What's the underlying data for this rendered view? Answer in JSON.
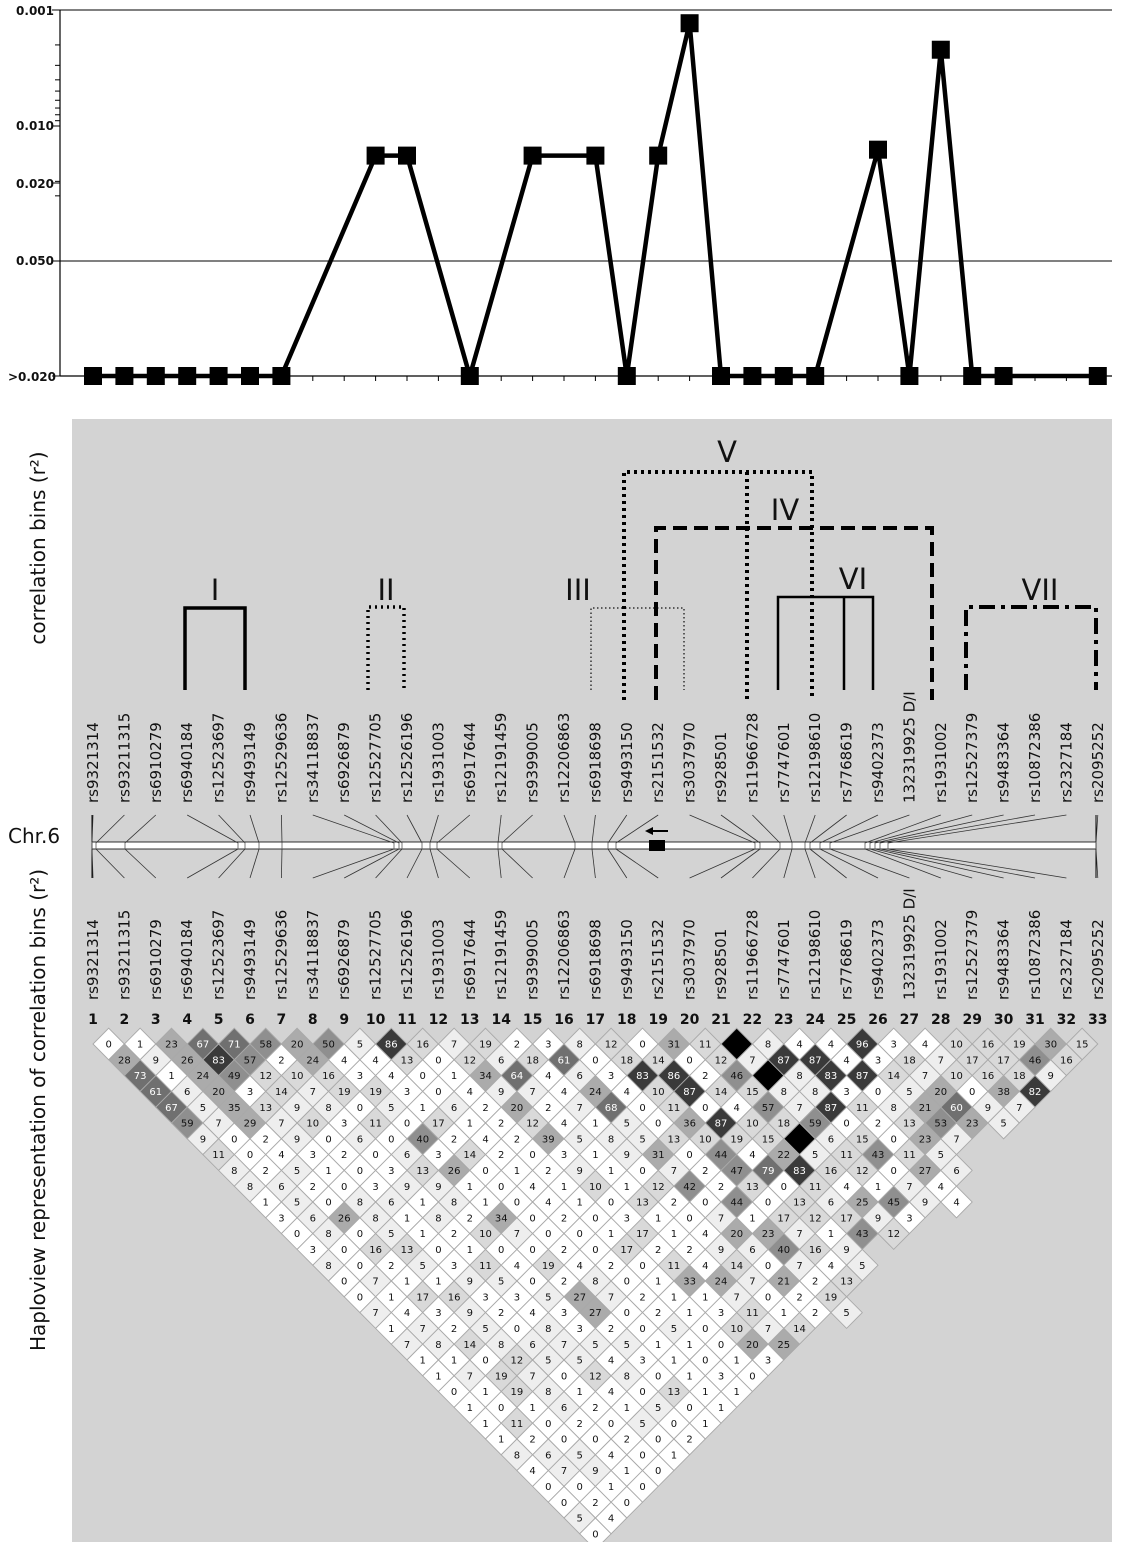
{
  "chart_data": [
    {
      "type": "line",
      "title": "",
      "xlabel": "",
      "ylabel": "",
      "y_scale": "log, inverted (p-value)",
      "y_tick_labels": [
        "0.001",
        "0.010",
        "0.020",
        "0.050",
        ">0.020"
      ],
      "reference_line": "0.050",
      "marker": "square",
      "line_color": "#000000",
      "points": [
        {
          "snp": 1,
          "p": ">0.020"
        },
        {
          "snp": 2,
          "p": ">0.020"
        },
        {
          "snp": 3,
          "p": ">0.020"
        },
        {
          "snp": 4,
          "p": ">0.020"
        },
        {
          "snp": 5,
          "p": ">0.020"
        },
        {
          "snp": 6,
          "p": ">0.020"
        },
        {
          "snp": 7,
          "p": ">0.020"
        },
        {
          "snp": 10,
          "p": 0.018
        },
        {
          "snp": 11,
          "p": 0.018
        },
        {
          "snp": 13,
          "p": ">0.020"
        },
        {
          "snp": 15,
          "p": 0.018
        },
        {
          "snp": 17,
          "p": 0.018
        },
        {
          "snp": 18,
          "p": ">0.020"
        },
        {
          "snp": 19,
          "p": 0.018
        },
        {
          "snp": 20,
          "p": 0.0013
        },
        {
          "snp": 21,
          "p": ">0.020"
        },
        {
          "snp": 22,
          "p": ">0.020"
        },
        {
          "snp": 23,
          "p": ">0.020"
        },
        {
          "snp": 24,
          "p": ">0.020"
        },
        {
          "snp": 26,
          "p": 0.016
        },
        {
          "snp": 27,
          "p": ">0.020"
        },
        {
          "snp": 28,
          "p": 0.0022
        },
        {
          "snp": 29,
          "p": ">0.020"
        },
        {
          "snp": 30,
          "p": ">0.020"
        },
        {
          "snp": 33,
          "p": ">0.020"
        }
      ]
    },
    {
      "type": "heatmap",
      "title": "",
      "side_title": "Haploview representation of correlation bins (r²)",
      "indices": [
        "1",
        "2",
        "3",
        "4",
        "5",
        "6",
        "7",
        "8",
        "9",
        "10",
        "11",
        "12",
        "13",
        "14",
        "15",
        "16",
        "17",
        "18",
        "19",
        "20",
        "21",
        "22",
        "23",
        "24",
        "25",
        "26",
        "27",
        "28",
        "29",
        "30",
        "31",
        "32",
        "33"
      ],
      "values_by_row": [
        [
          "0",
          "1",
          "23",
          "67",
          "71",
          "58",
          "20",
          "50",
          "5",
          "86",
          "16",
          "7",
          "19",
          "2",
          "3",
          "8",
          "12",
          "0",
          "31",
          "11",
          "",
          "8",
          "4",
          "4",
          "96",
          "3",
          "4",
          "10",
          "16",
          "19",
          "30",
          "15"
        ],
        [
          "28",
          "9",
          "26",
          "83",
          "57",
          "2",
          "24",
          "4",
          "4",
          "13",
          "0",
          "12",
          "6",
          "18",
          "61",
          "0",
          "18",
          "14",
          "0",
          "12",
          "7",
          "87",
          "87",
          "4",
          "3",
          "18",
          "7",
          "17",
          "17",
          "46",
          "16"
        ],
        [
          "73",
          "1",
          "24",
          "49",
          "12",
          "10",
          "16",
          "3",
          "4",
          "0",
          "1",
          "34",
          "64",
          "4",
          "6",
          "3",
          "83",
          "86",
          "2",
          "46",
          "",
          "8",
          "83",
          "87",
          "14",
          "7",
          "10",
          "16",
          "18",
          "9"
        ],
        [
          "61",
          "6",
          "20",
          "3",
          "14",
          "7",
          "19",
          "19",
          "3",
          "0",
          "4",
          "9",
          "7",
          "4",
          "24",
          "4",
          "10",
          "87",
          "14",
          "15",
          "8",
          "8",
          "3",
          "0",
          "5",
          "20",
          "0",
          "38",
          "82"
        ],
        [
          "67",
          "5",
          "35",
          "13",
          "9",
          "8",
          "0",
          "5",
          "1",
          "6",
          "2",
          "20",
          "2",
          "7",
          "68",
          "0",
          "11",
          "0",
          "4",
          "57",
          "7",
          "87",
          "11",
          "8",
          "21",
          "60",
          "9",
          "7"
        ],
        [
          "59",
          "7",
          "29",
          "7",
          "10",
          "3",
          "11",
          "0",
          "17",
          "1",
          "2",
          "12",
          "4",
          "1",
          "5",
          "0",
          "36",
          "87",
          "10",
          "18",
          "59",
          "0",
          "2",
          "13",
          "53",
          "23",
          "5"
        ],
        [
          "9",
          "0",
          "2",
          "9",
          "0",
          "6",
          "0",
          "40",
          "2",
          "4",
          "2",
          "39",
          "5",
          "8",
          "5",
          "13",
          "10",
          "19",
          "15",
          "",
          "6",
          "15",
          "0",
          "23",
          "7"
        ],
        [
          "11",
          "0",
          "4",
          "3",
          "2",
          "0",
          "6",
          "3",
          "14",
          "2",
          "0",
          "3",
          "1",
          "9",
          "31",
          "0",
          "44",
          "4",
          "22",
          "5",
          "11",
          "43",
          "11",
          "5"
        ],
        [
          "8",
          "2",
          "5",
          "1",
          "0",
          "3",
          "13",
          "26",
          "0",
          "1",
          "2",
          "9",
          "1",
          "0",
          "7",
          "2",
          "47",
          "79",
          "83",
          "16",
          "12",
          "0",
          "27",
          "6"
        ],
        [
          "8",
          "6",
          "2",
          "0",
          "3",
          "9",
          "9",
          "1",
          "0",
          "4",
          "1",
          "10",
          "1",
          "12",
          "42",
          "2",
          "13",
          "0",
          "11",
          "4",
          "1",
          "7",
          "4"
        ],
        [
          "1",
          "5",
          "0",
          "8",
          "6",
          "1",
          "8",
          "1",
          "0",
          "4",
          "1",
          "0",
          "13",
          "2",
          "0",
          "44",
          "0",
          "13",
          "6",
          "25",
          "45",
          "9",
          "4"
        ],
        [
          "3",
          "6",
          "26",
          "8",
          "1",
          "8",
          "2",
          "34",
          "0",
          "2",
          "0",
          "3",
          "1",
          "0",
          "7",
          "1",
          "17",
          "12",
          "17",
          "9",
          "3"
        ],
        [
          "0",
          "8",
          "0",
          "5",
          "1",
          "2",
          "10",
          "7",
          "0",
          "0",
          "1",
          "17",
          "1",
          "4",
          "20",
          "23",
          "7",
          "1",
          "43",
          "12"
        ],
        [
          "3",
          "0",
          "16",
          "13",
          "0",
          "1",
          "0",
          "0",
          "2",
          "0",
          "17",
          "2",
          "2",
          "9",
          "6",
          "40",
          "16",
          "9"
        ],
        [
          "8",
          "0",
          "2",
          "5",
          "3",
          "11",
          "4",
          "19",
          "4",
          "2",
          "0",
          "11",
          "4",
          "14",
          "0",
          "7",
          "4",
          "5"
        ],
        [
          "0",
          "7",
          "1",
          "1",
          "9",
          "5",
          "0",
          "2",
          "8",
          "0",
          "1",
          "33",
          "24",
          "7",
          "21",
          "2",
          "13"
        ],
        [
          "0",
          "1",
          "17",
          "16",
          "3",
          "3",
          "5",
          "27",
          "7",
          "2",
          "1",
          "1",
          "7",
          "0",
          "2",
          "19"
        ],
        [
          "7",
          "4",
          "3",
          "9",
          "2",
          "4",
          "3",
          "27",
          "0",
          "2",
          "1",
          "3",
          "11",
          "1",
          "2",
          "5"
        ],
        [
          "1",
          "7",
          "2",
          "5",
          "0",
          "8",
          "3",
          "2",
          "0",
          "5",
          "0",
          "10",
          "7",
          "14"
        ],
        [
          "7",
          "8",
          "14",
          "8",
          "6",
          "7",
          "5",
          "5",
          "1",
          "1",
          "0",
          "20",
          "25"
        ],
        [
          "1",
          "1",
          "0",
          "12",
          "5",
          "5",
          "4",
          "3",
          "1",
          "0",
          "1",
          "3"
        ],
        [
          "1",
          "7",
          "19",
          "7",
          "0",
          "12",
          "8",
          "0",
          "1",
          "3",
          "0"
        ],
        [
          "0",
          "1",
          "19",
          "8",
          "1",
          "4",
          "0",
          "13",
          "1",
          "1"
        ],
        [
          "1",
          "0",
          "1",
          "6",
          "2",
          "1",
          "5",
          "0",
          "1"
        ],
        [
          "1",
          "11",
          "0",
          "2",
          "0",
          "5",
          "0",
          "1"
        ],
        [
          "1",
          "2",
          "0",
          "0",
          "2",
          "0",
          "2"
        ],
        [
          "8",
          "6",
          "5",
          "4",
          "0",
          "1"
        ],
        [
          "4",
          "7",
          "9",
          "1",
          "0"
        ],
        [
          "0",
          "0",
          "1",
          "0"
        ],
        [
          "0",
          "2",
          "0"
        ],
        [
          "5",
          "4"
        ],
        [
          "0"
        ]
      ]
    }
  ],
  "snps_top": [
    "rs9321314",
    "rs93211315",
    "rs6910279",
    "rs6940184",
    "rs12523697",
    "rs9493149",
    "rs12529636",
    "rs34118837",
    "rs6926879",
    "rs12527705",
    "rs12526196",
    "rs1931003",
    "rs6917644",
    "rs12191459",
    "rs9399005",
    "rs12206863",
    "rs6918698",
    "rs9493150",
    "rs2151532",
    "rs3037970",
    "rs928501",
    "rs11966728",
    "rs7747601",
    "rs12198610",
    "rs7768619",
    "rs9402373",
    "132319925 D/I",
    "rs1931002",
    "rs12527379",
    "rs9483364",
    "rs10872386",
    "rs2327184",
    "rs2095252"
  ],
  "snps_bottom": [
    "rs9321314",
    "rs93211315",
    "rs6910279",
    "rs6940184",
    "rs12523697",
    "rs9493149",
    "rs12529636",
    "rs34118837",
    "rs6926879",
    "rs12527705",
    "rs12526196",
    "rs1931003",
    "rs6917644",
    "rs12191459",
    "rs9399005",
    "rs12206863",
    "rs6918698",
    "rs9493150",
    "rs2151532",
    "rs3037970",
    "rs928501",
    "rs11966728",
    "rs7747601",
    "rs12198610",
    "rs7768619",
    "rs9402373",
    "132319925 D/I",
    "rs1931002",
    "rs12527379",
    "rs9483364",
    "rs10872386",
    "rs2327184",
    "rs2095252"
  ],
  "bins": [
    {
      "label": "I",
      "snps": [
        4,
        6
      ],
      "style": "solid"
    },
    {
      "label": "II",
      "snps": [
        10,
        11
      ],
      "style": "dotted"
    },
    {
      "label": "III",
      "snps": [
        17,
        20
      ],
      "style": "fine-dotted"
    },
    {
      "label": "IV",
      "snps": [
        19,
        28
      ],
      "style": "dashed"
    },
    {
      "label": "V",
      "snps": [
        18,
        22,
        24
      ],
      "style": "dotted"
    },
    {
      "label": "VI",
      "snps": [
        23,
        25,
        26
      ],
      "style": "solid"
    },
    {
      "label": "VII",
      "snps": [
        29,
        33
      ],
      "style": "dash-dot"
    }
  ],
  "correlation_bins_title": "correlation bins (r²)",
  "chromosome_label": "Chr.6",
  "colors": {
    "panel_bg": "#d3d3d3",
    "line": "#000000",
    "white_cell": "#ffffff"
  }
}
